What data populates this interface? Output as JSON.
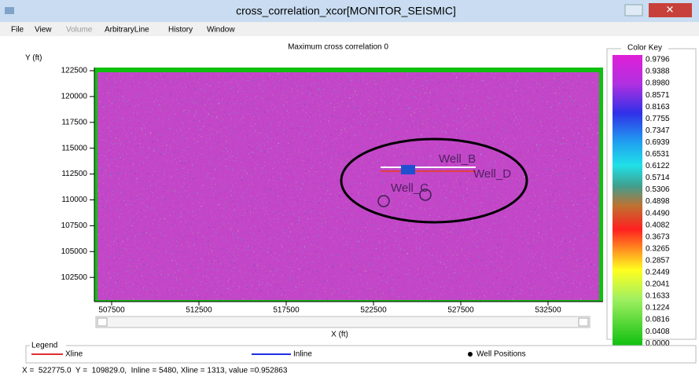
{
  "window": {
    "title": "cross_correlation_xcor[MONITOR_SEISMIC]"
  },
  "menu": [
    "File",
    "View",
    "Volume",
    "ArbitraryLine",
    "History",
    "Window"
  ],
  "plot": {
    "title": "Maximum cross correlation 0",
    "y_label": "Y (ft)",
    "x_label": "X (ft)",
    "yticks": [
      "122500",
      "120000",
      "117500",
      "115000",
      "112500",
      "110000",
      "107500",
      "105000",
      "102500"
    ],
    "xticks": [
      "507500",
      "512500",
      "517500",
      "522500",
      "527500",
      "532500"
    ],
    "wells": [
      "Well_B",
      "Well_D",
      "Well_C"
    ]
  },
  "color_key": {
    "title": "Color Key",
    "labels": [
      "0.9796",
      "0.9388",
      "0.8980",
      "0.8571",
      "0.8163",
      "0.7755",
      "0.7347",
      "0.6939",
      "0.6531",
      "0.6122",
      "0.5714",
      "0.5306",
      "0.4898",
      "0.4490",
      "0.4082",
      "0.3673",
      "0.3265",
      "0.2857",
      "0.2449",
      "0.2041",
      "0.1633",
      "0.1224",
      "0.0816",
      "0.0408",
      "0.0000"
    ]
  },
  "legend": {
    "title": "Legend",
    "items": [
      "Xline",
      "Inline",
      "Well Positions"
    ]
  },
  "status": "X =  522775.0  Y =  109829.0,  Inline = 5480, Xline = 1313, value =0.952863"
}
